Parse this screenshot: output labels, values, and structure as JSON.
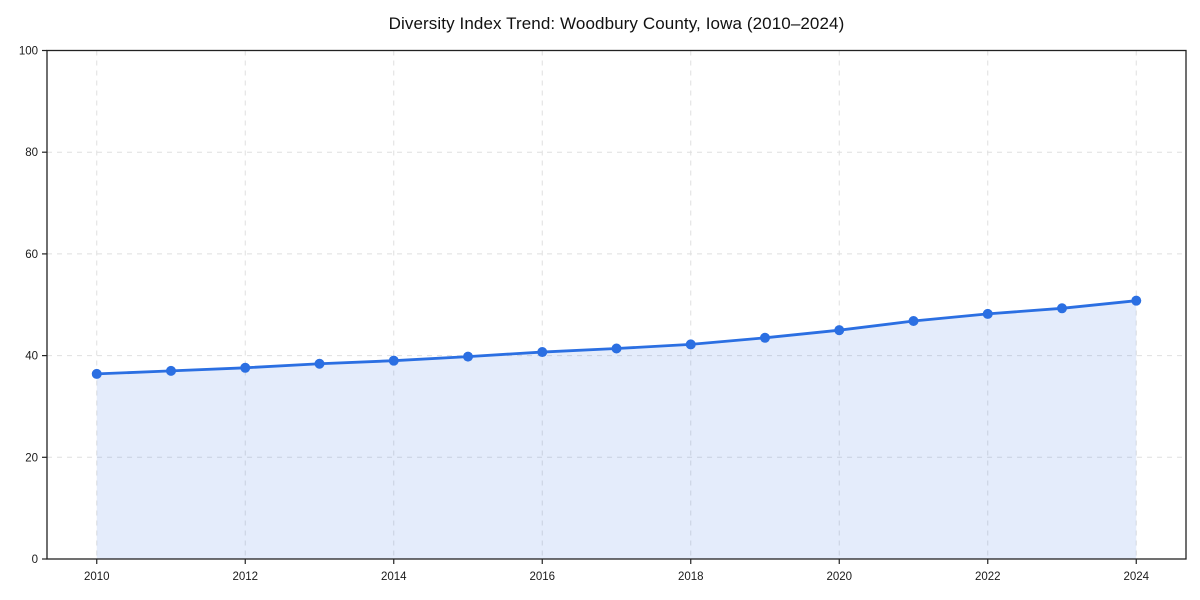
{
  "chart_data": {
    "type": "area",
    "title": "Diversity Index Trend: Woodbury County, Iowa (2010–2024)",
    "xlabel": "",
    "ylabel": "",
    "x": [
      2010,
      2011,
      2012,
      2013,
      2014,
      2015,
      2016,
      2017,
      2018,
      2019,
      2020,
      2021,
      2022,
      2023,
      2024
    ],
    "series": [
      {
        "name": "Diversity Index",
        "values": [
          36.4,
          37.0,
          37.6,
          38.4,
          39.0,
          39.8,
          40.7,
          41.4,
          42.2,
          43.5,
          45.0,
          46.8,
          48.2,
          49.3,
          50.8
        ]
      }
    ],
    "ylim": [
      0,
      100
    ],
    "yticks": [
      0,
      20,
      40,
      60,
      80,
      100
    ],
    "xticks": [
      2010,
      2012,
      2014,
      2016,
      2018,
      2020,
      2022,
      2024
    ],
    "grid": true,
    "grid_style": "dashed",
    "legend_position": "none",
    "colors": {
      "line": "#2b6fe2",
      "marker": "#2b6fe2",
      "fill": "rgba(43,111,226,0.13)",
      "grid": "#dfdfdf",
      "spine": "#222222",
      "tick_text": "#1a1a1a",
      "background": "#ffffff"
    }
  }
}
